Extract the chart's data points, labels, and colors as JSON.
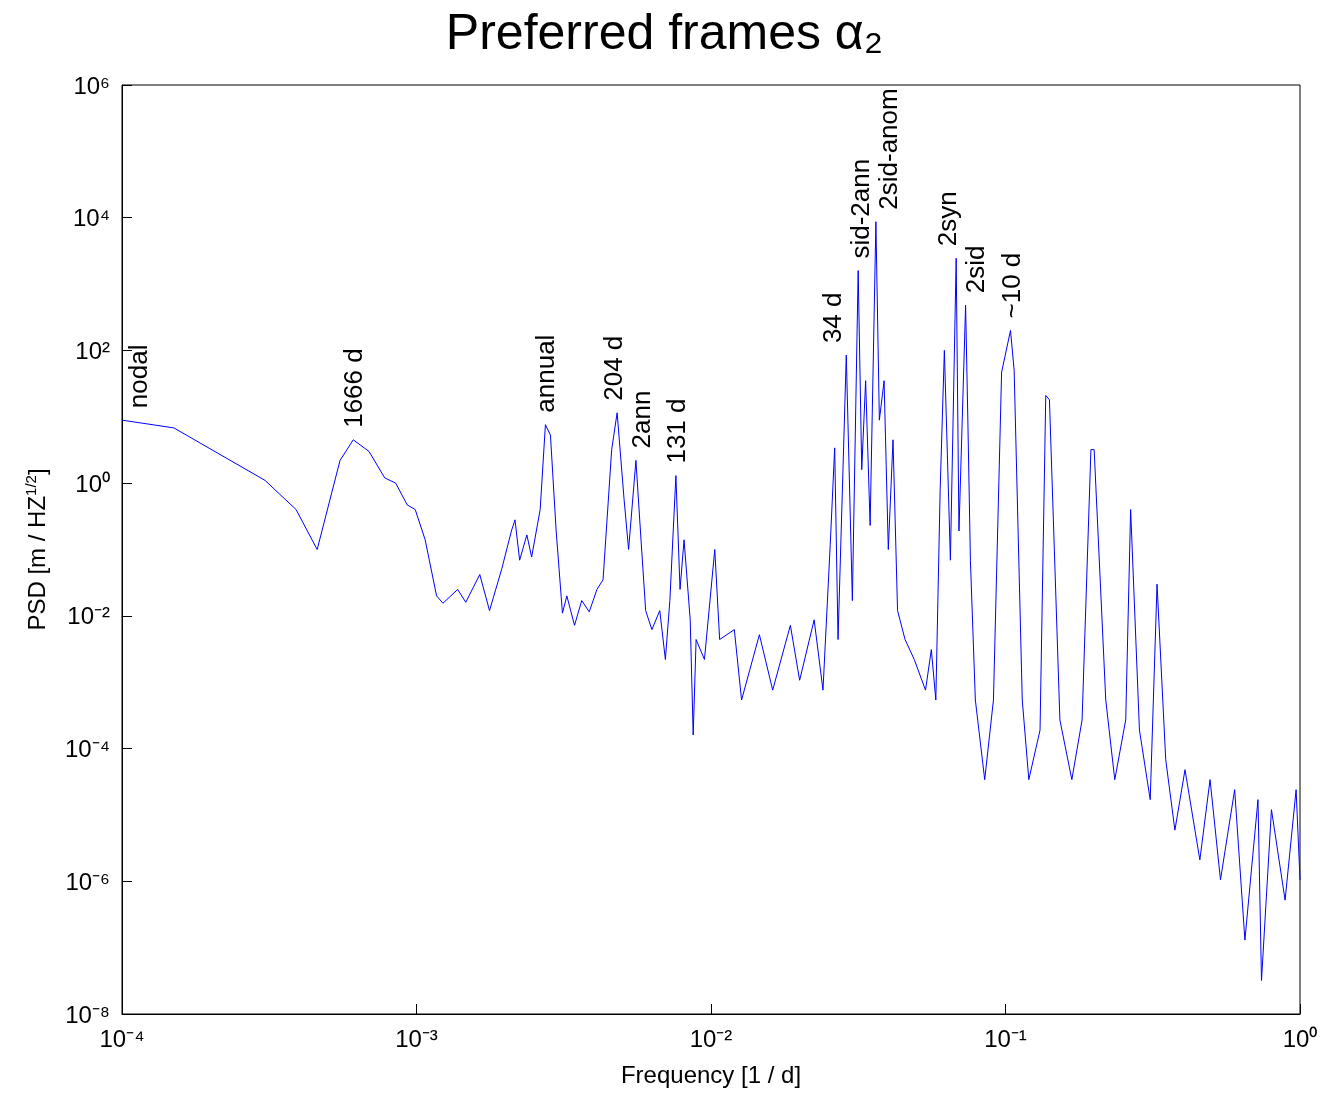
{
  "chart_data": {
    "type": "line",
    "title": "Preferred frames α₂",
    "xlabel": "Frequency [1 / d]",
    "ylabel": "PSD [m / HZ$^{1/2}$]",
    "log": "xy",
    "xlim": [
      0.0001,
      1
    ],
    "ylim": [
      1e-08,
      1000000
    ],
    "xticks": [
      {
        "value": 0.0001,
        "label": "10⁻⁴"
      },
      {
        "value": 0.001,
        "label": "10⁻³"
      },
      {
        "value": 0.01,
        "label": "10⁻²"
      },
      {
        "value": 0.1,
        "label": "10⁻¹"
      },
      {
        "value": 1,
        "label": "10⁰"
      }
    ],
    "yticks": [
      {
        "value": 1e-08,
        "label": "10⁻⁸"
      },
      {
        "value": 1e-06,
        "label": "10⁻⁶"
      },
      {
        "value": 0.0001,
        "label": "10⁻⁴"
      },
      {
        "value": 0.01,
        "label": "10⁻²"
      },
      {
        "value": 1,
        "label": "10⁰"
      },
      {
        "value": 100,
        "label": "10²"
      },
      {
        "value": 10000,
        "label": "10⁴"
      },
      {
        "value": 1000000,
        "label": "10⁶"
      }
    ],
    "grid": false,
    "series": [
      {
        "color": "#0000ff",
        "x": [
          0.0001,
          0.00015,
          0.000306,
          0.00039,
          0.00046,
          0.00055,
          0.00061,
          0.00069,
          0.00078,
          0.00085,
          0.00093,
          0.00099,
          0.00107,
          0.00117,
          0.00123,
          0.00138,
          0.00147,
          0.00164,
          0.00177,
          0.00195,
          0.0021,
          0.00216,
          0.00224,
          0.00237,
          0.00246,
          0.00263,
          0.00274,
          0.00285,
          0.00298,
          0.00313,
          0.00324,
          0.00344,
          0.00364,
          0.00386,
          0.0041,
          0.0043,
          0.0046,
          0.0048,
          0.00507,
          0.00525,
          0.00556,
          0.00576,
          0.006,
          0.0063,
          0.0067,
          0.007,
          0.00725,
          0.0076,
          0.00785,
          0.0081,
          0.0085,
          0.0087,
          0.0089,
          0.0095,
          0.0103,
          0.0107,
          0.012,
          0.0127,
          0.0146,
          0.0162,
          0.0186,
          0.02,
          0.0224,
          0.024,
          0.0254,
          0.0263,
          0.027,
          0.0288,
          0.0302,
          0.0316,
          0.0325,
          0.0335,
          0.0347,
          0.0363,
          0.0373,
          0.0387,
          0.04,
          0.0415,
          0.043,
          0.0456,
          0.049,
          0.0535,
          0.056,
          0.058,
          0.06,
          0.062,
          0.065,
          0.068,
          0.0695,
          0.0732,
          0.0745,
          0.076,
          0.079,
          0.085,
          0.091,
          0.097,
          0.104,
          0.107,
          0.114,
          0.12,
          0.131,
          0.137,
          0.141,
          0.153,
          0.168,
          0.182,
          0.195,
          0.2,
          0.219,
          0.235,
          0.256,
          0.266,
          0.285,
          0.31,
          0.327,
          0.35,
          0.376,
          0.407,
          0.457,
          0.495,
          0.537,
          0.6,
          0.65,
          0.72,
          0.74,
          0.8,
          0.89,
          0.97,
          1
        ],
        "values": [
          8.9,
          6.8,
          1.1,
          0.4,
          0.1,
          2.2,
          4.5,
          3,
          1.2,
          1.0,
          0.47,
          0.4,
          0.14,
          0.02,
          0.0155,
          0.025,
          0.016,
          0.042,
          0.012,
          0.052,
          0.19,
          0.28,
          0.069,
          0.166,
          0.077,
          0.4,
          7.6,
          5.3,
          0.19,
          0.011,
          0.02,
          0.0072,
          0.017,
          0.0115,
          0.025,
          0.035,
          3.2,
          11.5,
          0.56,
          0.1,
          2.2,
          0.19,
          0.012,
          0.0062,
          0.012,
          0.0022,
          0.017,
          1.3,
          0.025,
          0.14,
          0.0087,
          0.00016,
          0.0044,
          0.0022,
          0.1,
          0.0044,
          0.0062,
          0.00054,
          0.0052,
          0.00076,
          0.0072,
          0.00107,
          0.0087,
          0.00076,
          0.118,
          3.4,
          0.0044,
          85,
          0.017,
          1600,
          1.6,
          35,
          0.23,
          8700,
          8.9,
          35,
          0.1,
          4.5,
          0.012,
          0.0044,
          0.0022,
          0.00076,
          0.0031,
          0.00054,
          0.8,
          100,
          0.069,
          2450,
          0.19,
          480,
          8.9,
          0.069,
          0.00054,
          3.4e-05,
          0.00054,
          47,
          200,
          50,
          0.00054,
          3.4e-05,
          0.00019,
          21,
          18,
          0.00027,
          3.4e-05,
          0.00027,
          3.2,
          3.2,
          0.00054,
          3.4e-05,
          0.00027,
          0.4,
          0.00019,
          1.7e-05,
          0.03,
          6.8e-05,
          5.9e-06,
          4.8e-05,
          2.1e-06,
          3.4e-05,
          1.05e-06,
          2.4e-05,
          1.3e-07,
          1.7e-05,
          3.2e-08,
          1.2e-05,
          5.2e-07,
          2.4e-05,
          1.05e-06
        ]
      }
    ],
    "annotations": [
      {
        "text": "nodal",
        "x": 0.0001,
        "y": 8.9
      },
      {
        "text": "1666 d",
        "x": 0.00061,
        "y": 4.5
      },
      {
        "text": "annual",
        "x": 0.00274,
        "y": 7.6
      },
      {
        "text": "204 d",
        "x": 0.0048,
        "y": 11.5
      },
      {
        "text": "2ann",
        "x": 0.00556,
        "y": 2.2
      },
      {
        "text": "131 d",
        "x": 0.0076,
        "y": 1.3
      },
      {
        "text": "34 d",
        "x": 0.0288,
        "y": 85
      },
      {
        "text": "sid-2ann",
        "x": 0.0316,
        "y": 1600
      },
      {
        "text": "2sid-anom",
        "x": 0.0363,
        "y": 8700
      },
      {
        "text": "2syn",
        "x": 0.068,
        "y": 2450
      },
      {
        "text": "2sid",
        "x": 0.0732,
        "y": 480
      },
      {
        "text": "~10 d",
        "x": 0.104,
        "y": 200
      }
    ]
  }
}
